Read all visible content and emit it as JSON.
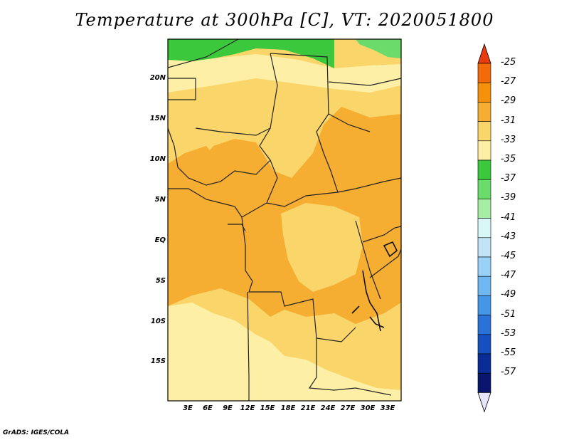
{
  "title": "Temperature at 300hPa [C], VT: 2020051800",
  "credit": "GrADS: IGES/COLA",
  "lat_labels": [
    "20N",
    "15N",
    "10N",
    "5N",
    "EQ",
    "5S",
    "10S",
    "15S"
  ],
  "lon_labels": [
    "3E",
    "6E",
    "9E",
    "12E",
    "15E",
    "18E",
    "21E",
    "24E",
    "27E",
    "30E",
    "33E"
  ],
  "colorbar": {
    "labels": [
      "-25",
      "-27",
      "-29",
      "-31",
      "-33",
      "-35",
      "-37",
      "-39",
      "-41",
      "-43",
      "-45",
      "-47",
      "-49",
      "-51",
      "-53",
      "-55",
      "-57"
    ],
    "colors": [
      "#e83c10",
      "#f26a0a",
      "#f5900a",
      "#f5ad32",
      "#fad66a",
      "#fdf0a6",
      "#3cc83c",
      "#6bdc6b",
      "#a6eea6",
      "#d9f7f7",
      "#c2e4f7",
      "#9ad2f7",
      "#6eb7f0",
      "#4696e8",
      "#2a72d8",
      "#1650c0",
      "#0a2c96",
      "#08166e",
      "#e6e6fa"
    ]
  },
  "field_colors": {
    "green": "#3cc83c",
    "light_yellow": "#fdf0a6",
    "yellow": "#fad66a",
    "orange": "#f5ad32"
  }
}
